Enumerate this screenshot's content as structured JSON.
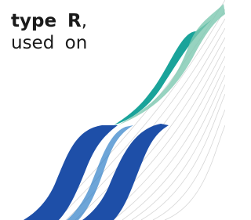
{
  "text": {
    "line1_bold": "type R",
    "line1_tail": ",",
    "line2": "used on"
  }
}
